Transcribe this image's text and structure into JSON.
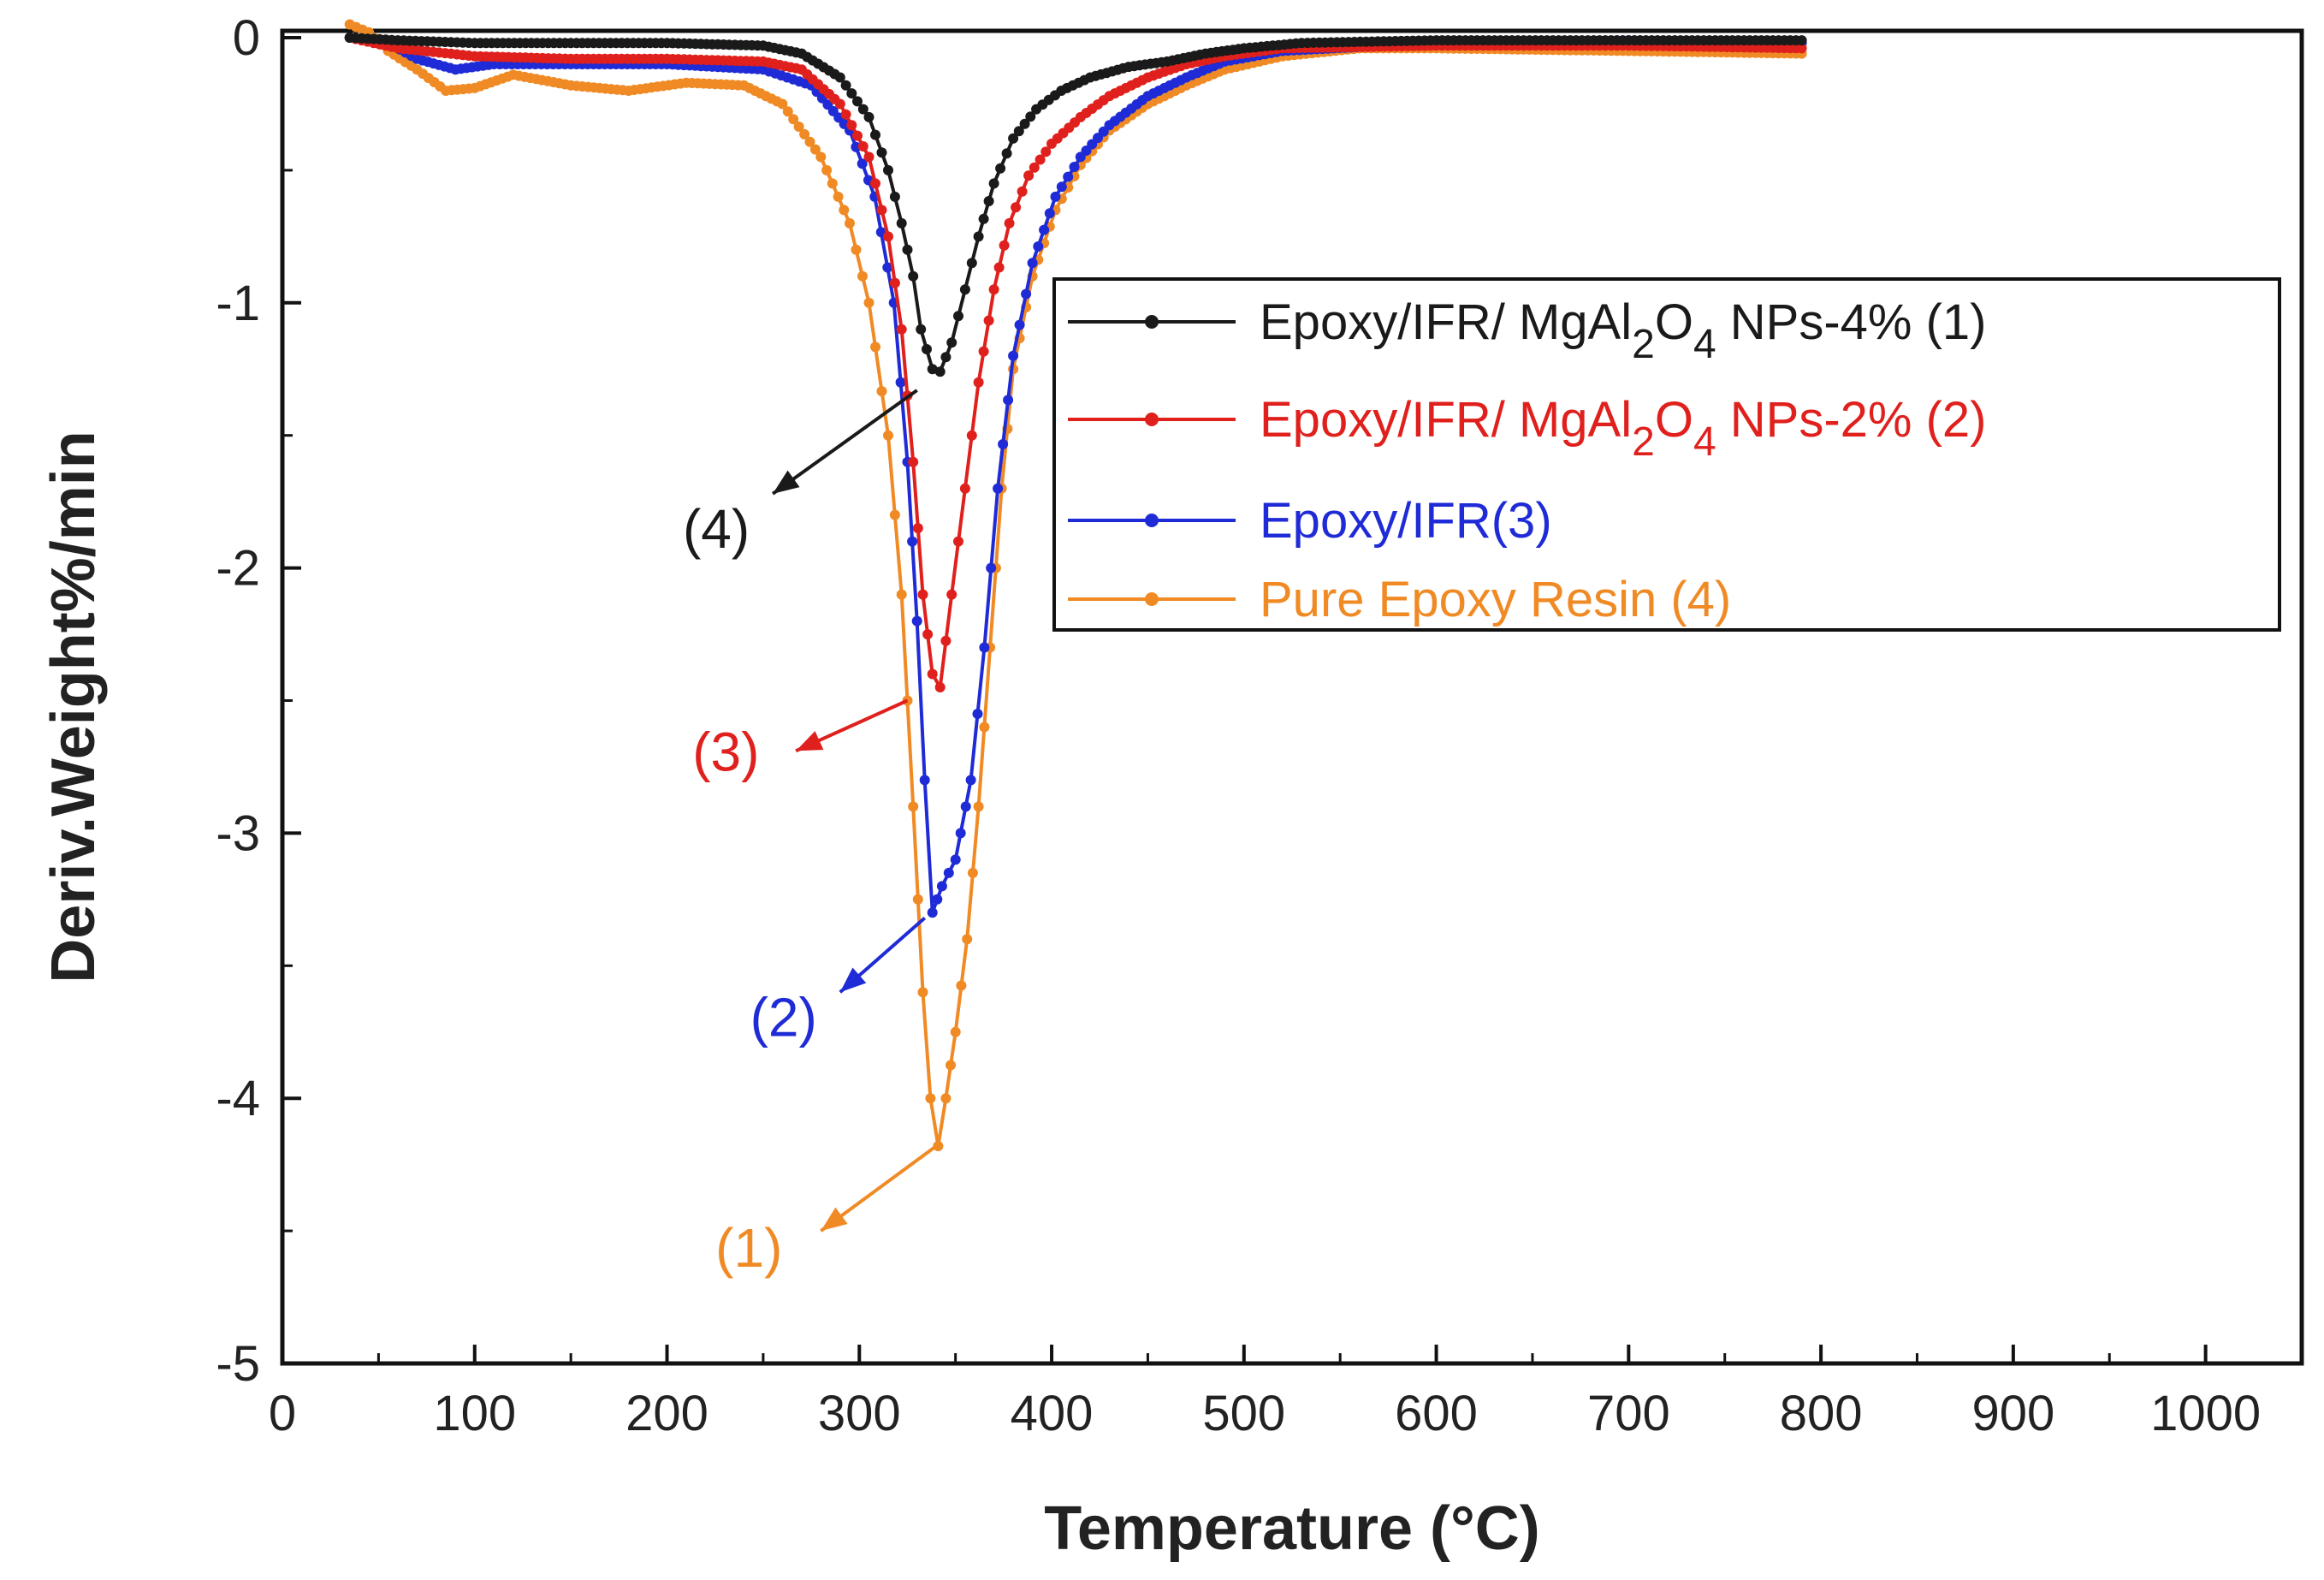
{
  "chart_data": {
    "type": "line",
    "title": "",
    "xlabel": "Temperature (°C)",
    "ylabel": "Deriv.Weight%/min",
    "xlim": [
      0,
      1050
    ],
    "ylim": [
      -5,
      0.1
    ],
    "xticks": [
      0,
      100,
      200,
      300,
      400,
      500,
      600,
      700,
      800,
      900,
      1000
    ],
    "yticks": [
      0,
      -1,
      -2,
      -3,
      -4,
      -5
    ],
    "xtick_labels": [
      "0",
      "100",
      "200",
      "300",
      "400",
      "500",
      "600",
      "700",
      "800",
      "900",
      "1000"
    ],
    "ytick_labels": [
      "0",
      "-1",
      "-2",
      "-3",
      "-4",
      "-5"
    ],
    "legend_position": "center-right",
    "series": [
      {
        "name": "Epoxy/IFR/ MgAl2O4 NPs-4% (1)",
        "legend": {
          "pre": "Epoxy/IFR/ MgAl",
          "sub1": "2",
          "mid": "O",
          "sub2": "4",
          "post": " NPs-4% (1)"
        },
        "color": "#1a1a1a",
        "points": [
          [
            35,
            0
          ],
          [
            60,
            -0.01
          ],
          [
            100,
            -0.02
          ],
          [
            150,
            -0.02
          ],
          [
            200,
            -0.02
          ],
          [
            250,
            -0.03
          ],
          [
            270,
            -0.06
          ],
          [
            290,
            -0.15
          ],
          [
            305,
            -0.3
          ],
          [
            315,
            -0.5
          ],
          [
            322,
            -0.7
          ],
          [
            328,
            -0.9
          ],
          [
            332,
            -1.1
          ],
          [
            338,
            -1.25
          ],
          [
            342,
            -1.26
          ],
          [
            348,
            -1.15
          ],
          [
            355,
            -0.95
          ],
          [
            362,
            -0.75
          ],
          [
            370,
            -0.55
          ],
          [
            380,
            -0.38
          ],
          [
            392,
            -0.27
          ],
          [
            405,
            -0.2
          ],
          [
            420,
            -0.15
          ],
          [
            440,
            -0.11
          ],
          [
            460,
            -0.09
          ],
          [
            480,
            -0.06
          ],
          [
            500,
            -0.04
          ],
          [
            530,
            -0.02
          ],
          [
            600,
            -0.01
          ],
          [
            700,
            -0.01
          ],
          [
            790,
            -0.01
          ]
        ]
      },
      {
        "name": "Epoxy/IFR/ MgAl2O4 NPs-2% (2)",
        "legend": {
          "pre": "Epoxy/IFR/ MgAl",
          "sub1": "2",
          "mid": "O",
          "sub2": "4",
          "post": " NPs-2% (2)"
        },
        "color": "#e0201c",
        "points": [
          [
            35,
            0
          ],
          [
            60,
            -0.04
          ],
          [
            100,
            -0.07
          ],
          [
            150,
            -0.08
          ],
          [
            200,
            -0.08
          ],
          [
            250,
            -0.09
          ],
          [
            270,
            -0.12
          ],
          [
            290,
            -0.25
          ],
          [
            305,
            -0.45
          ],
          [
            315,
            -0.75
          ],
          [
            322,
            -1.1
          ],
          [
            328,
            -1.6
          ],
          [
            333,
            -2.1
          ],
          [
            338,
            -2.4
          ],
          [
            342,
            -2.45
          ],
          [
            348,
            -2.1
          ],
          [
            355,
            -1.7
          ],
          [
            362,
            -1.3
          ],
          [
            370,
            -0.95
          ],
          [
            378,
            -0.7
          ],
          [
            388,
            -0.52
          ],
          [
            400,
            -0.4
          ],
          [
            415,
            -0.3
          ],
          [
            430,
            -0.22
          ],
          [
            450,
            -0.15
          ],
          [
            470,
            -0.1
          ],
          [
            490,
            -0.07
          ],
          [
            520,
            -0.04
          ],
          [
            600,
            -0.03
          ],
          [
            700,
            -0.03
          ],
          [
            790,
            -0.04
          ]
        ]
      },
      {
        "name": "Epoxy/IFR(3)",
        "legend": {
          "pre": "Epoxy/IFR(3)",
          "sub1": "",
          "mid": "",
          "sub2": "",
          "post": ""
        },
        "color": "#1f2bd6",
        "points": [
          [
            35,
            0
          ],
          [
            55,
            -0.02
          ],
          [
            70,
            -0.08
          ],
          [
            90,
            -0.12
          ],
          [
            110,
            -0.1
          ],
          [
            150,
            -0.1
          ],
          [
            200,
            -0.1
          ],
          [
            250,
            -0.12
          ],
          [
            275,
            -0.18
          ],
          [
            295,
            -0.35
          ],
          [
            308,
            -0.6
          ],
          [
            318,
            -1.0
          ],
          [
            325,
            -1.6
          ],
          [
            330,
            -2.2
          ],
          [
            334,
            -2.8
          ],
          [
            338,
            -3.3
          ],
          [
            343,
            -3.2
          ],
          [
            350,
            -3.1
          ],
          [
            358,
            -2.8
          ],
          [
            365,
            -2.3
          ],
          [
            372,
            -1.7
          ],
          [
            380,
            -1.2
          ],
          [
            390,
            -0.85
          ],
          [
            402,
            -0.6
          ],
          [
            415,
            -0.45
          ],
          [
            430,
            -0.33
          ],
          [
            450,
            -0.22
          ],
          [
            470,
            -0.15
          ],
          [
            490,
            -0.09
          ],
          [
            520,
            -0.05
          ],
          [
            600,
            -0.02
          ],
          [
            700,
            -0.01
          ],
          [
            790,
            -0.02
          ]
        ]
      },
      {
        "name": "Pure Epoxy Resin (4)",
        "legend": {
          "pre": "Pure Epoxy Resin (4)",
          "sub1": "",
          "mid": "",
          "sub2": "",
          "post": ""
        },
        "color": "#f08a24",
        "points": [
          [
            35,
            0.05
          ],
          [
            45,
            0.02
          ],
          [
            55,
            -0.05
          ],
          [
            70,
            -0.12
          ],
          [
            85,
            -0.2
          ],
          [
            100,
            -0.19
          ],
          [
            120,
            -0.14
          ],
          [
            150,
            -0.18
          ],
          [
            180,
            -0.2
          ],
          [
            210,
            -0.17
          ],
          [
            240,
            -0.18
          ],
          [
            260,
            -0.25
          ],
          [
            280,
            -0.45
          ],
          [
            295,
            -0.7
          ],
          [
            305,
            -1.0
          ],
          [
            315,
            -1.5
          ],
          [
            322,
            -2.1
          ],
          [
            328,
            -2.9
          ],
          [
            333,
            -3.6
          ],
          [
            337,
            -4.0
          ],
          [
            341,
            -4.18
          ],
          [
            345,
            -4.0
          ],
          [
            350,
            -3.75
          ],
          [
            356,
            -3.4
          ],
          [
            362,
            -2.9
          ],
          [
            368,
            -2.3
          ],
          [
            374,
            -1.7
          ],
          [
            380,
            -1.25
          ],
          [
            390,
            -0.9
          ],
          [
            402,
            -0.65
          ],
          [
            415,
            -0.48
          ],
          [
            430,
            -0.35
          ],
          [
            450,
            -0.25
          ],
          [
            470,
            -0.18
          ],
          [
            490,
            -0.12
          ],
          [
            520,
            -0.07
          ],
          [
            560,
            -0.04
          ],
          [
            600,
            -0.04
          ],
          [
            700,
            -0.05
          ],
          [
            790,
            -0.06
          ]
        ]
      }
    ],
    "annotations": [
      {
        "text": "(4)",
        "color": "#1a1a1a",
        "arrow_color": "#1a1a1a",
        "from": [
          330,
          -1.33
        ],
        "to": [
          255,
          -1.72
        ],
        "label_at": [
          243,
          -1.86
        ]
      },
      {
        "text": "(3)",
        "color": "#e0201c",
        "arrow_color": "#e0201c",
        "from": [
          325,
          -2.5
        ],
        "to": [
          267,
          -2.69
        ],
        "label_at": [
          248,
          -2.7
        ]
      },
      {
        "text": "(2)",
        "color": "#1f2bd6",
        "arrow_color": "#1f2bd6",
        "from": [
          334,
          -3.32
        ],
        "to": [
          290,
          -3.6
        ],
        "label_at": [
          278,
          -3.7
        ]
      },
      {
        "text": "(1)",
        "color": "#f08a24",
        "arrow_color": "#f08a24",
        "from": [
          340,
          -4.18
        ],
        "to": [
          280,
          -4.5
        ],
        "label_at": [
          260,
          -4.57
        ]
      }
    ]
  }
}
